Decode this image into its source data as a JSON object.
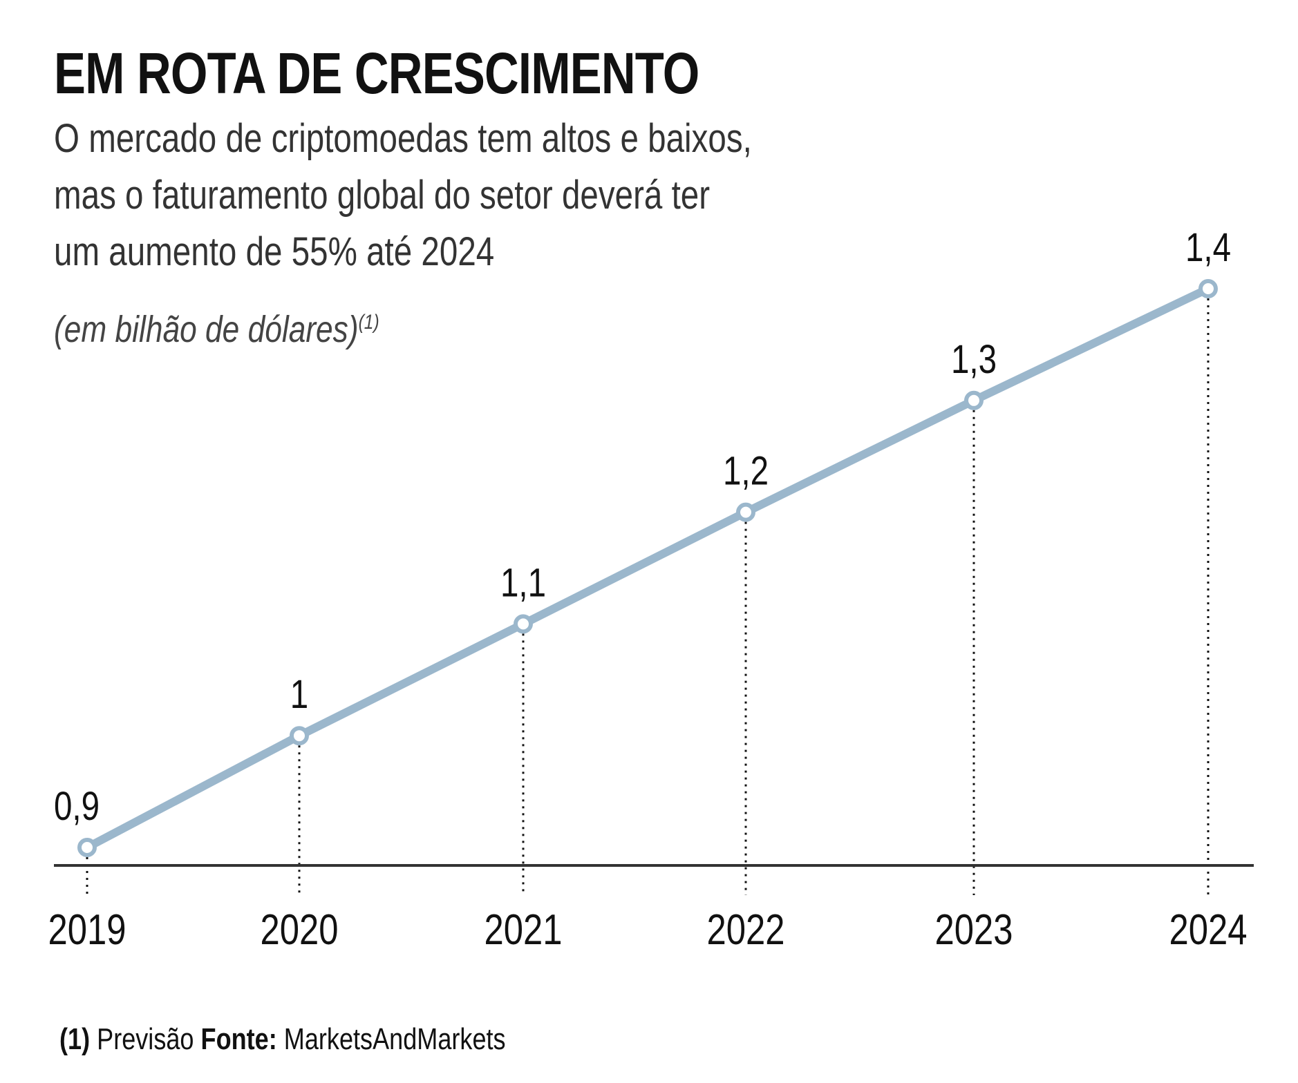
{
  "chart_data": {
    "type": "line",
    "title": "EM ROTA DE CRESCIMENTO",
    "subtitle": [
      "O mercado de criptomoedas tem altos e baixos,",
      "mas o faturamento global do setor deverá ter",
      "um aumento de 55% até 2024"
    ],
    "units": "(em bilhão de dólares)",
    "units_note": "(1)",
    "categories": [
      "2019",
      "2020",
      "2021",
      "2022",
      "2023",
      "2024"
    ],
    "values": [
      0.9,
      1.0,
      1.1,
      1.2,
      1.3,
      1.4
    ],
    "data_labels": [
      "0,9",
      "1",
      "1,1",
      "1,2",
      "1,3",
      "1,4"
    ],
    "ylim": [
      0.9,
      1.4
    ],
    "grid": false,
    "line_color": "#9bb7cc",
    "axis_color": "#333333"
  },
  "footnote": {
    "note": "(1) Previsão",
    "source_label": "Fonte:",
    "source": "MarketsAndMarkets"
  }
}
